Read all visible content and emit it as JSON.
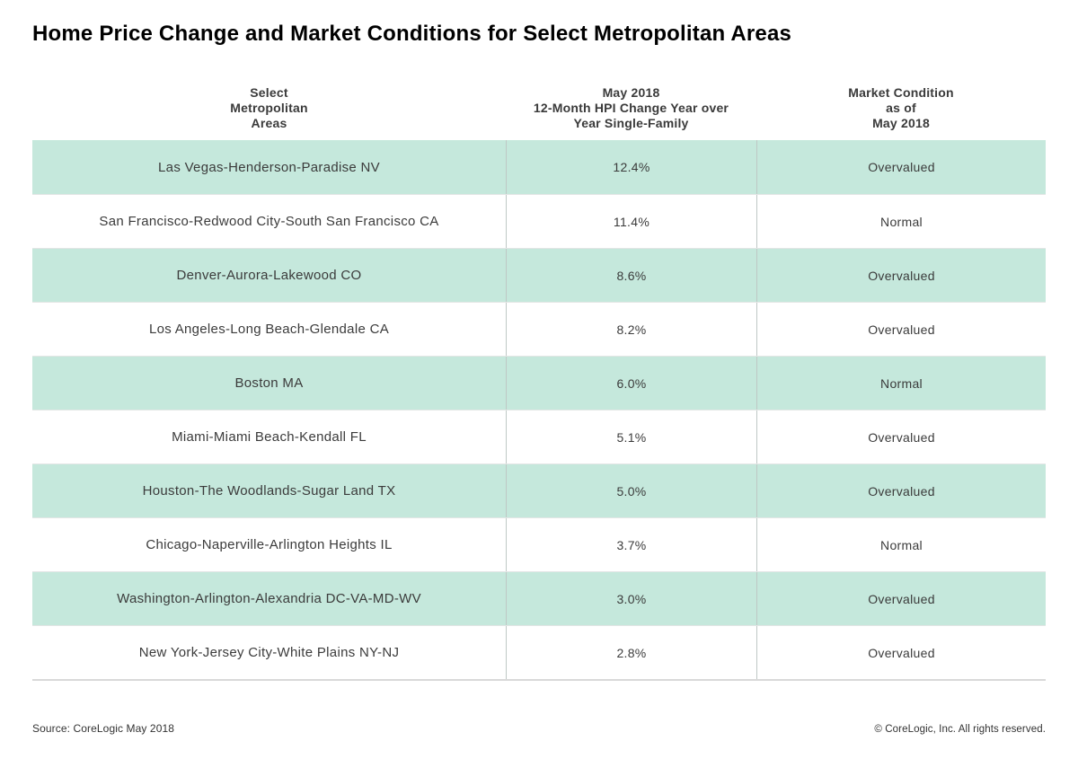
{
  "page": {
    "title": "Home Price Change and Market Conditions for Select Metropolitan Areas"
  },
  "table": {
    "headers": {
      "areas": "Select\nMetropolitan\nAreas",
      "hpi": "May 2018\n12-Month HPI Change Year over\nYear Single-Family",
      "condition": "Market Condition\nas of\nMay 2018"
    },
    "rows": [
      {
        "area": "Las Vegas-Henderson-Paradise NV",
        "hpi_change": "12.4%",
        "condition": "Overvalued"
      },
      {
        "area": "San Francisco-Redwood City-South San Francisco CA",
        "hpi_change": "11.4%",
        "condition": "Normal"
      },
      {
        "area": "Denver-Aurora-Lakewood CO",
        "hpi_change": "8.6%",
        "condition": "Overvalued"
      },
      {
        "area": "Los Angeles-Long Beach-Glendale CA",
        "hpi_change": "8.2%",
        "condition": "Overvalued"
      },
      {
        "area": "Boston MA",
        "hpi_change": "6.0%",
        "condition": "Normal"
      },
      {
        "area": "Miami-Miami Beach-Kendall FL",
        "hpi_change": "5.1%",
        "condition": "Overvalued"
      },
      {
        "area": "Houston-The Woodlands-Sugar Land TX",
        "hpi_change": "5.0%",
        "condition": "Overvalued"
      },
      {
        "area": "Chicago-Naperville-Arlington Heights IL",
        "hpi_change": "3.7%",
        "condition": "Normal"
      },
      {
        "area": "Washington-Arlington-Alexandria DC-VA-MD-WV",
        "hpi_change": "3.0%",
        "condition": "Overvalued"
      },
      {
        "area": "New York-Jersey City-White Plains NY-NJ",
        "hpi_change": "2.8%",
        "condition": "Overvalued"
      }
    ]
  },
  "footer": {
    "source": "Source: CoreLogic May 2018",
    "copyright": "© CoreLogic, Inc. All rights reserved."
  },
  "colors": {
    "row_highlight": "#c5e8dc",
    "bottom_border": "#d9d9d9",
    "separator": "#bfc8c5",
    "text": "#3b3b3b"
  },
  "chart_data": {
    "type": "table",
    "title": "Home Price Change and Market Conditions for Select Metropolitan Areas",
    "columns": [
      "Select Metropolitan Areas",
      "May 2018 12-Month HPI Change Year over Year Single-Family",
      "Market Condition as of May 2018"
    ],
    "rows": [
      [
        "Las Vegas-Henderson-Paradise NV",
        "12.4%",
        "Overvalued"
      ],
      [
        "San Francisco-Redwood City-South San Francisco CA",
        "11.4%",
        "Normal"
      ],
      [
        "Denver-Aurora-Lakewood CO",
        "8.6%",
        "Overvalued"
      ],
      [
        "Los Angeles-Long Beach-Glendale CA",
        "8.2%",
        "Overvalued"
      ],
      [
        "Boston MA",
        "6.0%",
        "Normal"
      ],
      [
        "Miami-Miami Beach-Kendall FL",
        "5.1%",
        "Overvalued"
      ],
      [
        "Houston-The Woodlands-Sugar Land TX",
        "5.0%",
        "Overvalued"
      ],
      [
        "Chicago-Naperville-Arlington Heights IL",
        "3.7%",
        "Normal"
      ],
      [
        "Washington-Arlington-Alexandria DC-VA-MD-WV",
        "3.0%",
        "Overvalued"
      ],
      [
        "New York-Jersey City-White Plains NY-NJ",
        "2.8%",
        "Overvalued"
      ]
    ],
    "hpi_values": [
      12.4,
      11.4,
      8.6,
      8.2,
      6.0,
      5.1,
      5.0,
      3.7,
      3.0,
      2.8
    ]
  }
}
